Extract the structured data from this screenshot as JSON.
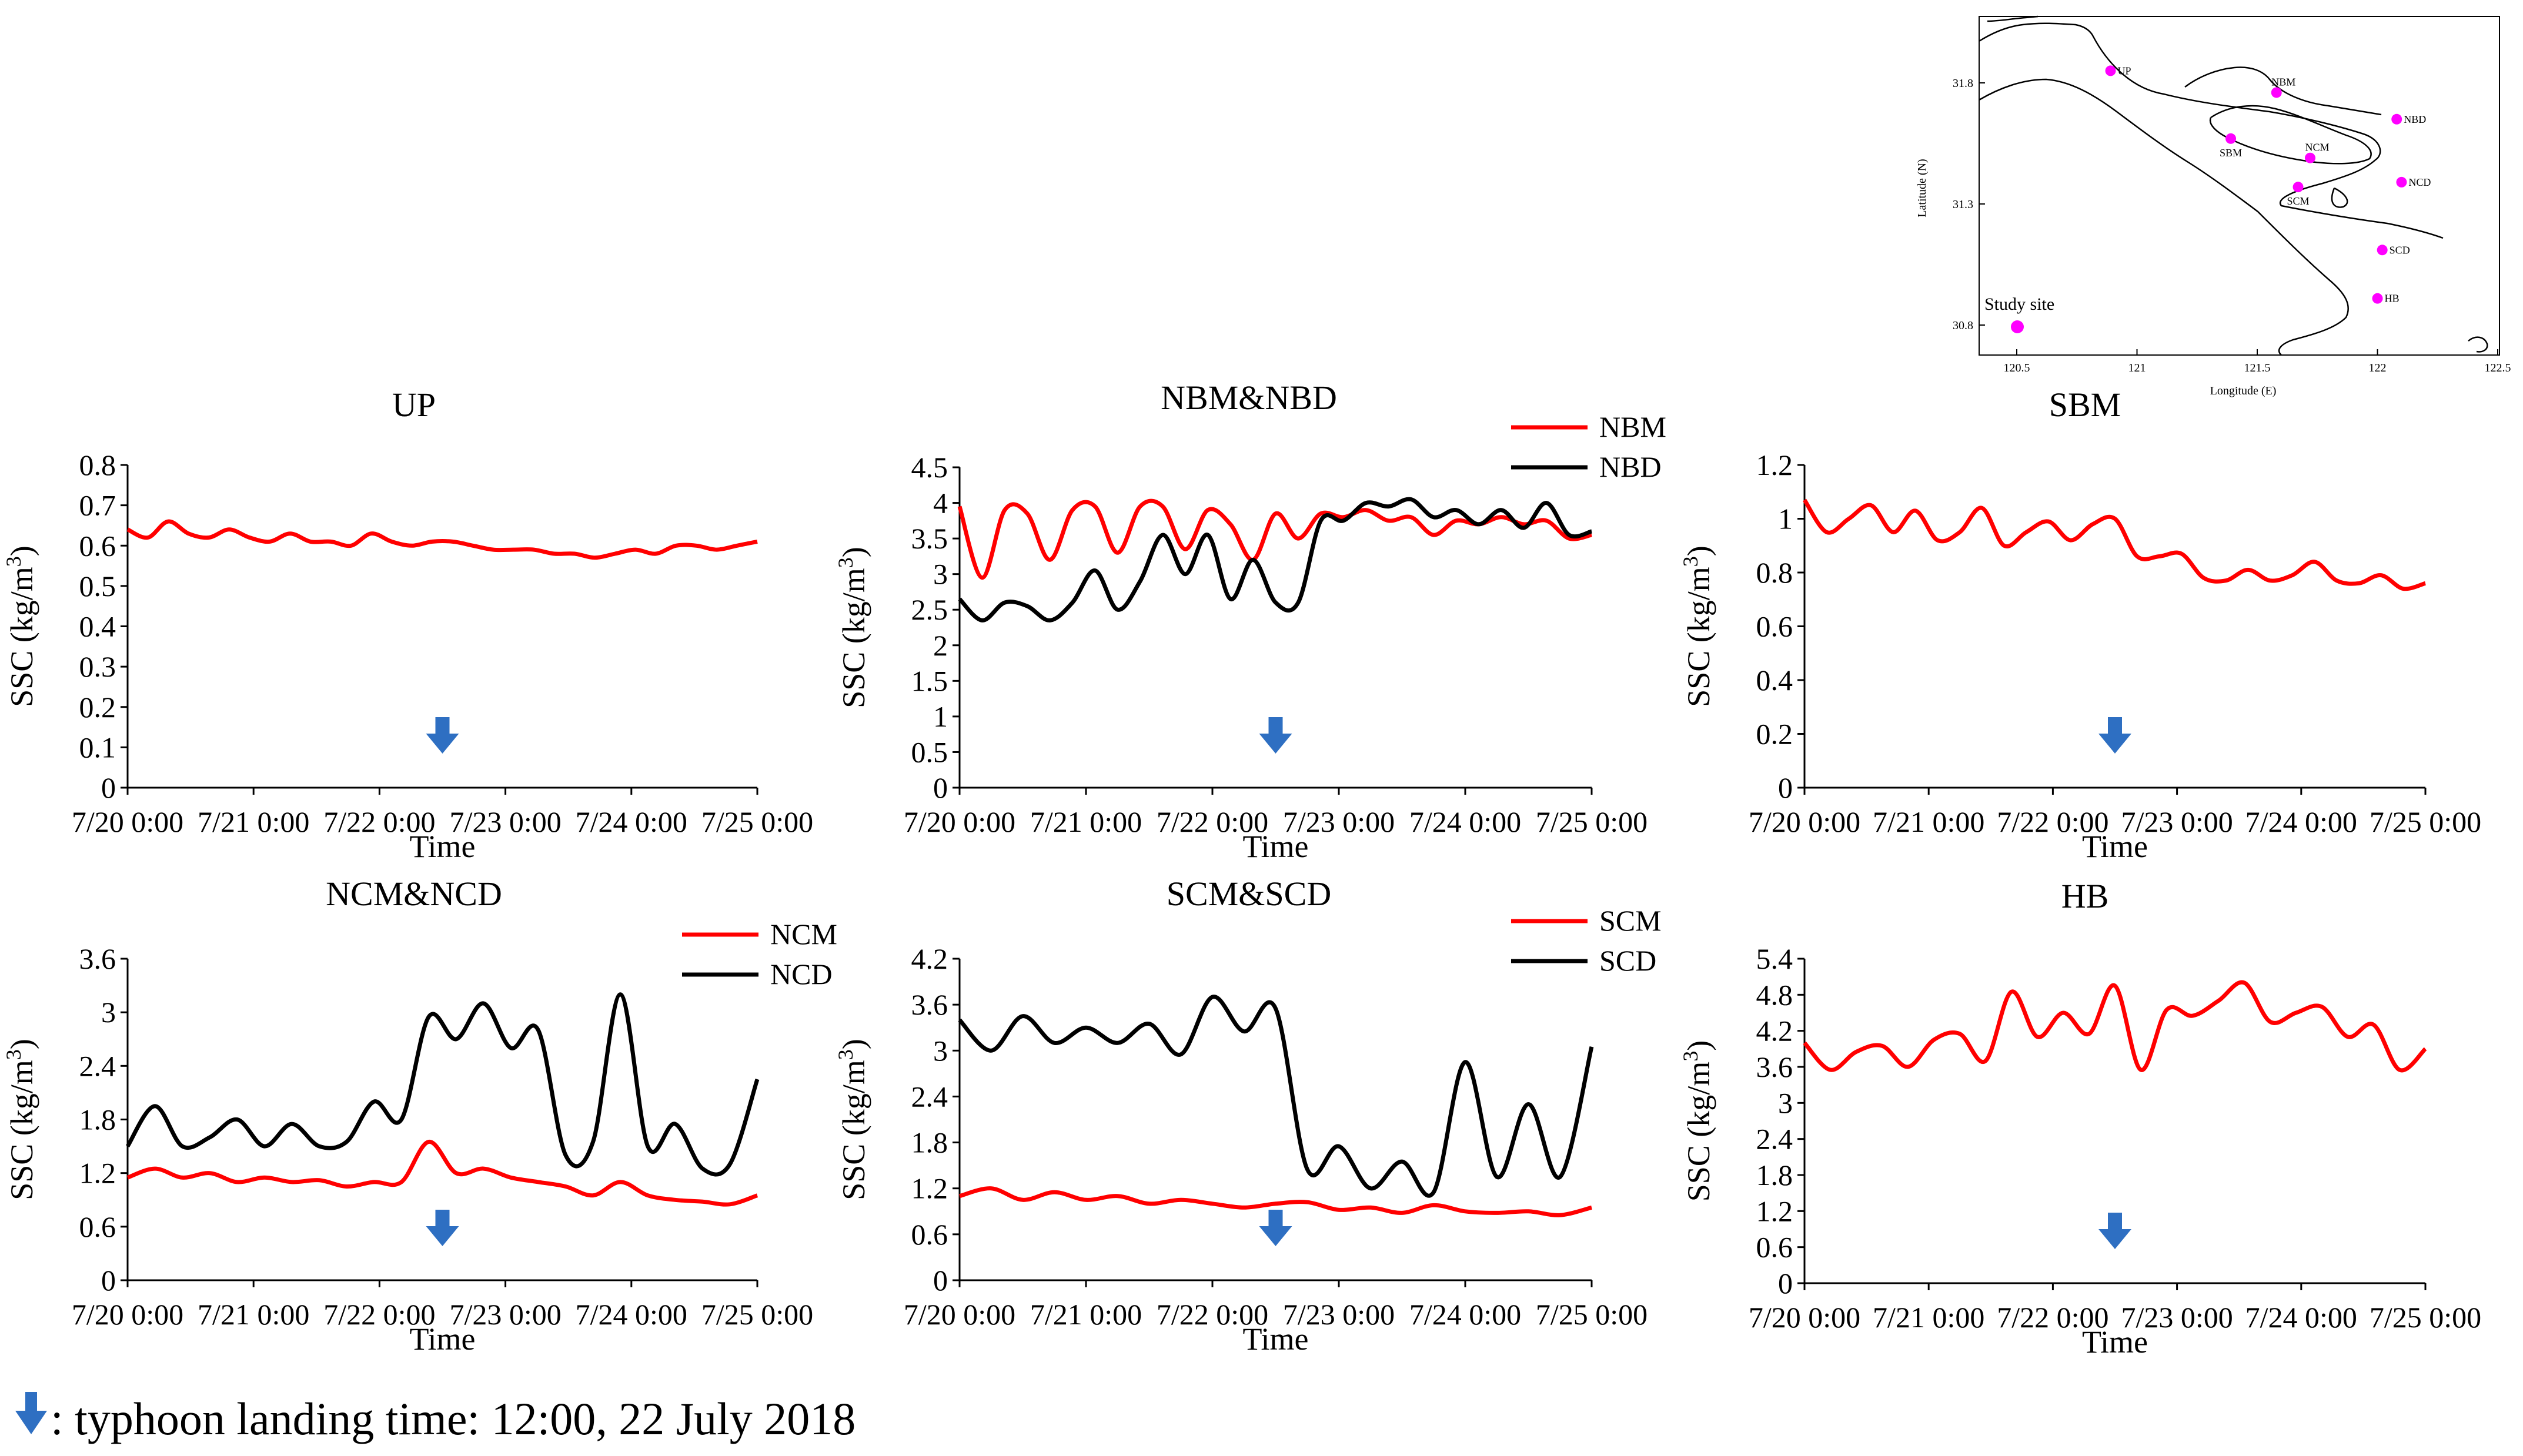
{
  "colors": {
    "red": "#ff0000",
    "black": "#000000",
    "arrow": "#2e6fc2",
    "site": "#ff00ff"
  },
  "footnote": {
    "text": ": typhoon landing time: 12:00,  22 July 2018"
  },
  "map": {
    "ylabel": "Latitude (N)",
    "xlabel": "Longitude (E)",
    "lat_ticks": [
      "31.8",
      "31.3",
      "30.8"
    ],
    "lon_ticks": [
      "120.5",
      "121",
      "121.5",
      "122",
      "122.5"
    ],
    "legend": "Study site",
    "sites": [
      {
        "name": "UP",
        "lon": 120.89,
        "lat": 31.85
      },
      {
        "name": "NBM",
        "lon": 121.58,
        "lat": 31.76
      },
      {
        "name": "NBD",
        "lon": 122.08,
        "lat": 31.65
      },
      {
        "name": "SBM",
        "lon": 121.39,
        "lat": 31.57
      },
      {
        "name": "NCM",
        "lon": 121.72,
        "lat": 31.49
      },
      {
        "name": "NCD",
        "lon": 122.1,
        "lat": 31.39
      },
      {
        "name": "SCM",
        "lon": 121.67,
        "lat": 31.37
      },
      {
        "name": "SCD",
        "lon": 122.02,
        "lat": 31.11
      },
      {
        "name": "HB",
        "lon": 122.0,
        "lat": 30.91
      }
    ]
  },
  "chart_data": [
    {
      "type": "line",
      "title": "UP",
      "xlabel": "Time",
      "ylabel": "SSC (kg/m3)",
      "x_ticks": [
        "7/20 0:00",
        "7/21 0:00",
        "7/22 0:00",
        "7/23 0:00",
        "7/24 0:00",
        "7/25 0:00"
      ],
      "y_ticks": [
        "0",
        "0.1",
        "0.2",
        "0.3",
        "0.4",
        "0.5",
        "0.6",
        "0.7",
        "0.8"
      ],
      "ylim": [
        0,
        0.8
      ],
      "xlim_days": [
        0,
        5
      ],
      "arrow_day": 2.5,
      "series": [
        {
          "name": "UP",
          "color": "#ff0000",
          "values": [
            0.64,
            0.62,
            0.66,
            0.63,
            0.62,
            0.64,
            0.62,
            0.61,
            0.63,
            0.61,
            0.61,
            0.6,
            0.63,
            0.61,
            0.6,
            0.61,
            0.61,
            0.6,
            0.59,
            0.59,
            0.59,
            0.58,
            0.58,
            0.57,
            0.58,
            0.59,
            0.58,
            0.6,
            0.6,
            0.59,
            0.6,
            0.61
          ]
        }
      ]
    },
    {
      "type": "line",
      "title": "NBM&NBD",
      "xlabel": "Time",
      "ylabel": "SSC (kg/m3)",
      "x_ticks": [
        "7/20 0:00",
        "7/21 0:00",
        "7/22 0:00",
        "7/23 0:00",
        "7/24 0:00",
        "7/25 0:00"
      ],
      "y_ticks": [
        "0",
        "0.5",
        "1",
        "1.5",
        "2",
        "2.5",
        "3",
        "3.5",
        "4",
        "4.5"
      ],
      "ylim": [
        0,
        4.5
      ],
      "xlim_days": [
        0,
        5
      ],
      "arrow_day": 2.5,
      "series": [
        {
          "name": "NBM",
          "color": "#ff0000",
          "values": [
            3.95,
            2.95,
            3.9,
            3.85,
            3.2,
            3.9,
            3.95,
            3.3,
            3.95,
            3.95,
            3.35,
            3.9,
            3.7,
            3.2,
            3.85,
            3.5,
            3.85,
            3.8,
            3.9,
            3.75,
            3.8,
            3.55,
            3.75,
            3.7,
            3.8,
            3.7,
            3.75,
            3.5,
            3.55
          ]
        },
        {
          "name": "NBD",
          "color": "#000000",
          "values": [
            2.65,
            2.35,
            2.6,
            2.55,
            2.35,
            2.6,
            3.05,
            2.5,
            2.9,
            3.55,
            3.0,
            3.55,
            2.65,
            3.2,
            2.6,
            2.6,
            3.75,
            3.75,
            4.0,
            3.95,
            4.05,
            3.8,
            3.9,
            3.7,
            3.9,
            3.65,
            4.0,
            3.55,
            3.6
          ]
        }
      ]
    },
    {
      "type": "line",
      "title": "SBM",
      "xlabel": "Time",
      "ylabel": "SSC (kg/m3)",
      "x_ticks": [
        "7/20 0:00",
        "7/21 0:00",
        "7/22 0:00",
        "7/23 0:00",
        "7/24 0:00",
        "7/25 0:00"
      ],
      "y_ticks": [
        "0",
        "0.2",
        "0.4",
        "0.6",
        "0.8",
        "1",
        "1.2"
      ],
      "ylim": [
        0,
        1.2
      ],
      "xlim_days": [
        0,
        5
      ],
      "arrow_day": 2.5,
      "series": [
        {
          "name": "SBM",
          "color": "#ff0000",
          "values": [
            1.07,
            0.95,
            1.0,
            1.05,
            0.95,
            1.03,
            0.92,
            0.95,
            1.04,
            0.9,
            0.95,
            0.99,
            0.92,
            0.98,
            1.0,
            0.86,
            0.86,
            0.87,
            0.78,
            0.77,
            0.81,
            0.77,
            0.79,
            0.84,
            0.77,
            0.76,
            0.79,
            0.74,
            0.76
          ]
        }
      ]
    },
    {
      "type": "line",
      "title": "NCM&NCD",
      "xlabel": "Time",
      "ylabel": "SSC (kg/m3)",
      "x_ticks": [
        "7/20 0:00",
        "7/21 0:00",
        "7/22 0:00",
        "7/23 0:00",
        "7/24 0:00",
        "7/25 0:00"
      ],
      "y_ticks": [
        "0",
        "0.6",
        "1.2",
        "1.8",
        "2.4",
        "3",
        "3.6"
      ],
      "ylim": [
        0,
        3.6
      ],
      "xlim_days": [
        0,
        5
      ],
      "arrow_day": 2.5,
      "series": [
        {
          "name": "NCM",
          "color": "#ff0000",
          "values": [
            1.15,
            1.25,
            1.15,
            1.2,
            1.1,
            1.15,
            1.1,
            1.12,
            1.05,
            1.1,
            1.1,
            1.55,
            1.2,
            1.25,
            1.15,
            1.1,
            1.05,
            0.95,
            1.1,
            0.95,
            0.9,
            0.88,
            0.85,
            0.95
          ]
        },
        {
          "name": "NCD",
          "color": "#000000",
          "values": [
            1.5,
            1.95,
            1.5,
            1.6,
            1.8,
            1.5,
            1.75,
            1.5,
            1.55,
            2.0,
            1.8,
            2.95,
            2.7,
            3.1,
            2.6,
            2.8,
            1.4,
            1.55,
            3.2,
            1.5,
            1.75,
            1.25,
            1.3,
            2.25
          ]
        }
      ]
    },
    {
      "type": "line",
      "title": "SCM&SCD",
      "xlabel": "Time",
      "ylabel": "SSC (kg/m3)",
      "x_ticks": [
        "7/20 0:00",
        "7/21 0:00",
        "7/22 0:00",
        "7/23 0:00",
        "7/24 0:00",
        "7/25 0:00"
      ],
      "y_ticks": [
        "0",
        "0.6",
        "1.2",
        "1.8",
        "2.4",
        "3",
        "3.6",
        "4.2"
      ],
      "ylim": [
        0,
        4.2
      ],
      "xlim_days": [
        0,
        5
      ],
      "arrow_day": 2.5,
      "series": [
        {
          "name": "SCM",
          "color": "#ff0000",
          "values": [
            1.1,
            1.2,
            1.05,
            1.15,
            1.05,
            1.1,
            1.0,
            1.05,
            1.0,
            0.95,
            1.0,
            1.02,
            0.92,
            0.95,
            0.88,
            0.98,
            0.9,
            0.88,
            0.9,
            0.85,
            0.95
          ]
        },
        {
          "name": "SCD",
          "color": "#000000",
          "values": [
            3.4,
            3.0,
            3.45,
            3.1,
            3.3,
            3.1,
            3.35,
            2.95,
            3.7,
            3.25,
            3.55,
            1.45,
            1.75,
            1.2,
            1.55,
            1.15,
            2.85,
            1.35,
            2.3,
            1.35,
            3.05
          ]
        }
      ]
    },
    {
      "type": "line",
      "title": "HB",
      "xlabel": "Time",
      "ylabel": "SSC (kg/m3)",
      "x_ticks": [
        "7/20 0:00",
        "7/21 0:00",
        "7/22 0:00",
        "7/23 0:00",
        "7/24 0:00",
        "7/25 0:00"
      ],
      "y_ticks": [
        "0",
        "0.6",
        "1.2",
        "1.8",
        "2.4",
        "3",
        "3.6",
        "4.2",
        "4.8",
        "5.4"
      ],
      "ylim": [
        0,
        5.4
      ],
      "xlim_days": [
        0,
        5
      ],
      "arrow_day": 2.5,
      "series": [
        {
          "name": "HB",
          "color": "#ff0000",
          "values": [
            4.0,
            3.55,
            3.85,
            3.95,
            3.6,
            4.05,
            4.15,
            3.7,
            4.85,
            4.1,
            4.5,
            4.15,
            4.95,
            3.55,
            4.55,
            4.45,
            4.7,
            5.0,
            4.35,
            4.5,
            4.6,
            4.1,
            4.3,
            3.55,
            3.9
          ]
        }
      ]
    }
  ]
}
